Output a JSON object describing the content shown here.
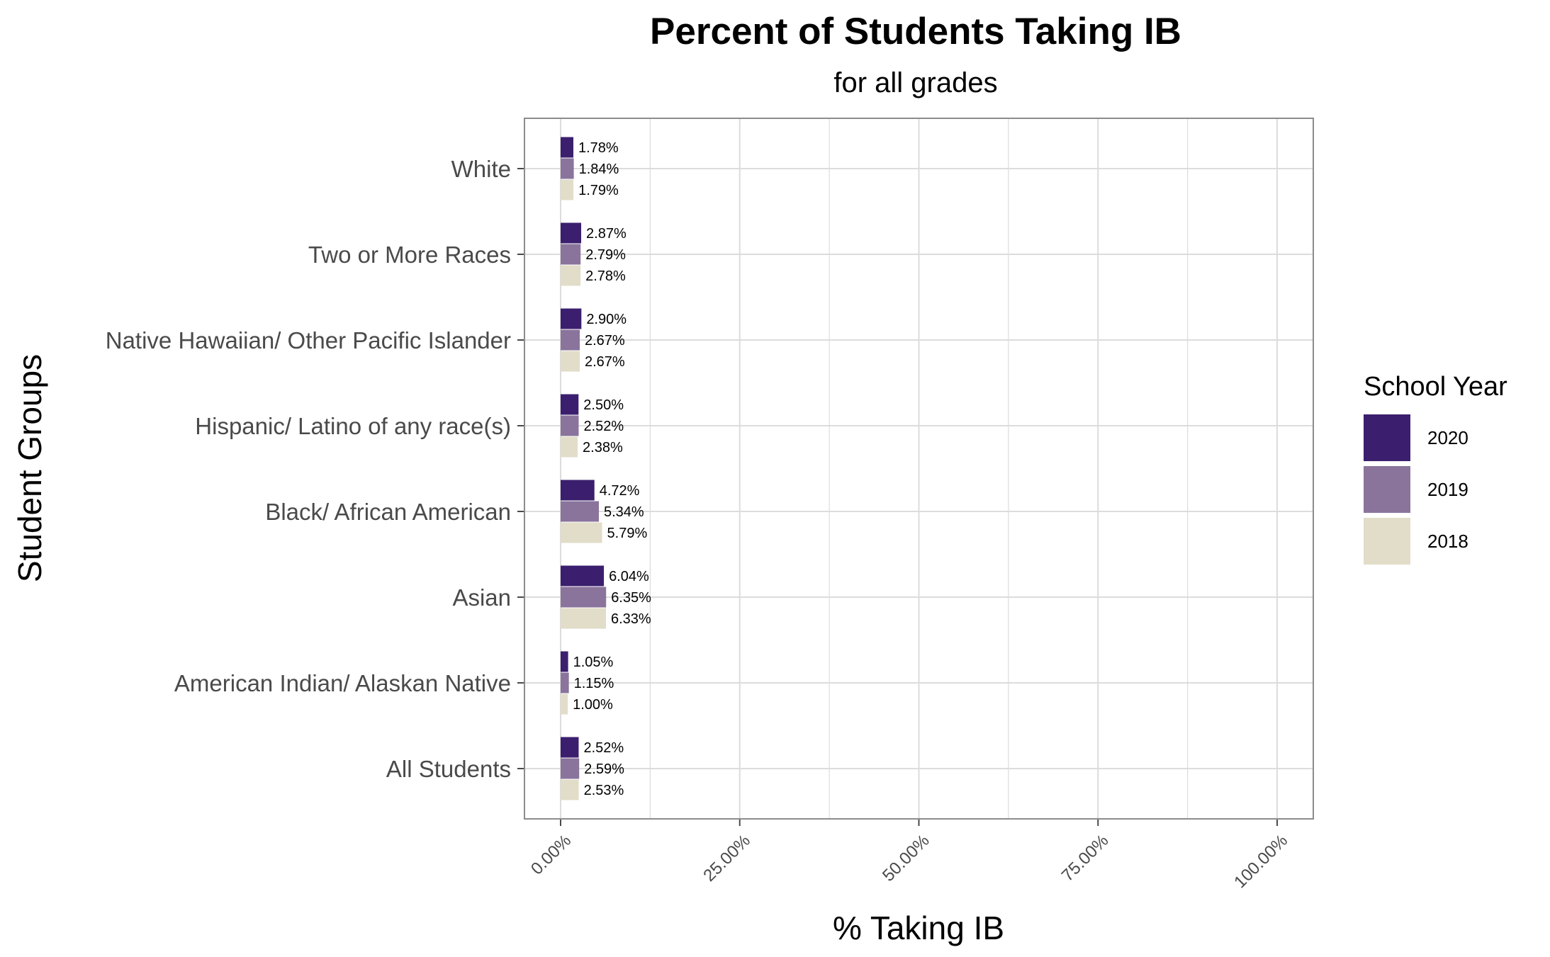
{
  "chart_data": {
    "type": "bar",
    "orientation": "horizontal",
    "title": "Percent of Students Taking IB",
    "subtitle": "for all grades",
    "xlabel": "% Taking IB",
    "ylabel": "Student Groups",
    "xlim": [
      0,
      100
    ],
    "x_ticks": [
      0,
      25,
      50,
      75,
      100
    ],
    "x_tick_labels": [
      "0.00%",
      "25.00%",
      "50.00%",
      "75.00%",
      "100.00%"
    ],
    "grid": true,
    "legend_position": "right",
    "legend_title": "School Year",
    "categories": [
      "White",
      "Two or More Races",
      "Native Hawaiian/ Other Pacific Islander",
      "Hispanic/ Latino of any race(s)",
      "Black/ African American",
      "Asian",
      "American Indian/ Alaskan Native",
      "All Students"
    ],
    "series": [
      {
        "name": "2020",
        "color": "#3b1f6e",
        "values": [
          1.78,
          2.87,
          2.9,
          2.5,
          4.72,
          6.04,
          1.05,
          2.52
        ]
      },
      {
        "name": "2019",
        "color": "#8a749c",
        "values": [
          1.84,
          2.79,
          2.67,
          2.52,
          5.34,
          6.35,
          1.15,
          2.59
        ]
      },
      {
        "name": "2018",
        "color": "#e2ddc9",
        "values": [
          1.79,
          2.78,
          2.67,
          2.38,
          5.79,
          6.33,
          1.0,
          2.53
        ]
      }
    ],
    "data_labels": [
      [
        "1.78%",
        "2.87%",
        "2.90%",
        "2.50%",
        "4.72%",
        "6.04%",
        "1.05%",
        "2.52%"
      ],
      [
        "1.84%",
        "2.79%",
        "2.67%",
        "2.52%",
        "5.34%",
        "6.35%",
        "1.15%",
        "2.59%"
      ],
      [
        "1.79%",
        "2.78%",
        "2.67%",
        "2.38%",
        "5.79%",
        "6.33%",
        "1.00%",
        "2.53%"
      ]
    ]
  }
}
